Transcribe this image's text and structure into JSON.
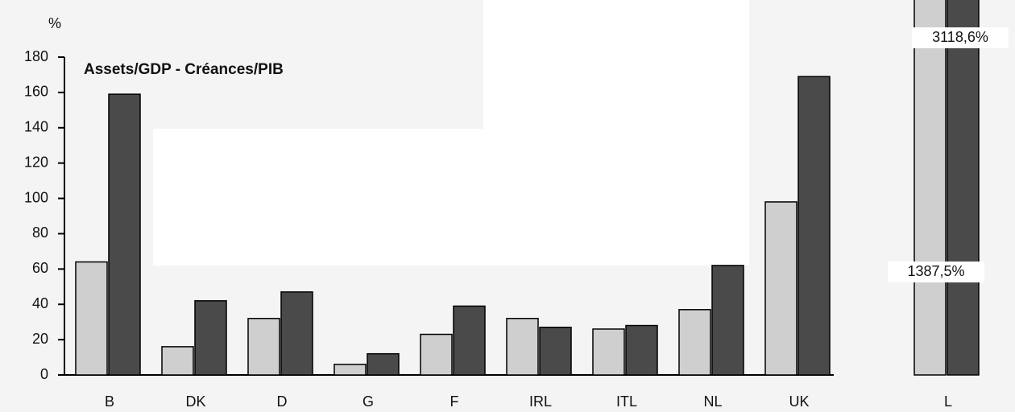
{
  "chart_data": {
    "type": "bar",
    "title": "Assets/GDP   -   Créances/PIB",
    "y_label": "%",
    "categories": [
      "B",
      "DK",
      "D",
      "G",
      "F",
      "IRL",
      "ITL",
      "NL",
      "UK",
      "L"
    ],
    "series": [
      {
        "color": "#cfcfcf",
        "values": [
          64,
          16,
          32,
          6,
          23,
          32,
          26,
          37,
          98,
          1387.5
        ],
        "value_labels": [
          null,
          null,
          null,
          null,
          null,
          null,
          null,
          null,
          null,
          "1387,5%"
        ]
      },
      {
        "color": "#4a4a4a",
        "values": [
          159,
          42,
          47,
          12,
          39,
          27,
          28,
          62,
          169,
          3118.6
        ],
        "value_labels": [
          null,
          null,
          null,
          null,
          null,
          null,
          null,
          null,
          null,
          "3118,6%"
        ]
      }
    ],
    "ylim": [
      0,
      180
    ],
    "yticks": [
      0,
      20,
      40,
      60,
      80,
      100,
      120,
      140,
      160,
      180
    ],
    "grid": false
  }
}
